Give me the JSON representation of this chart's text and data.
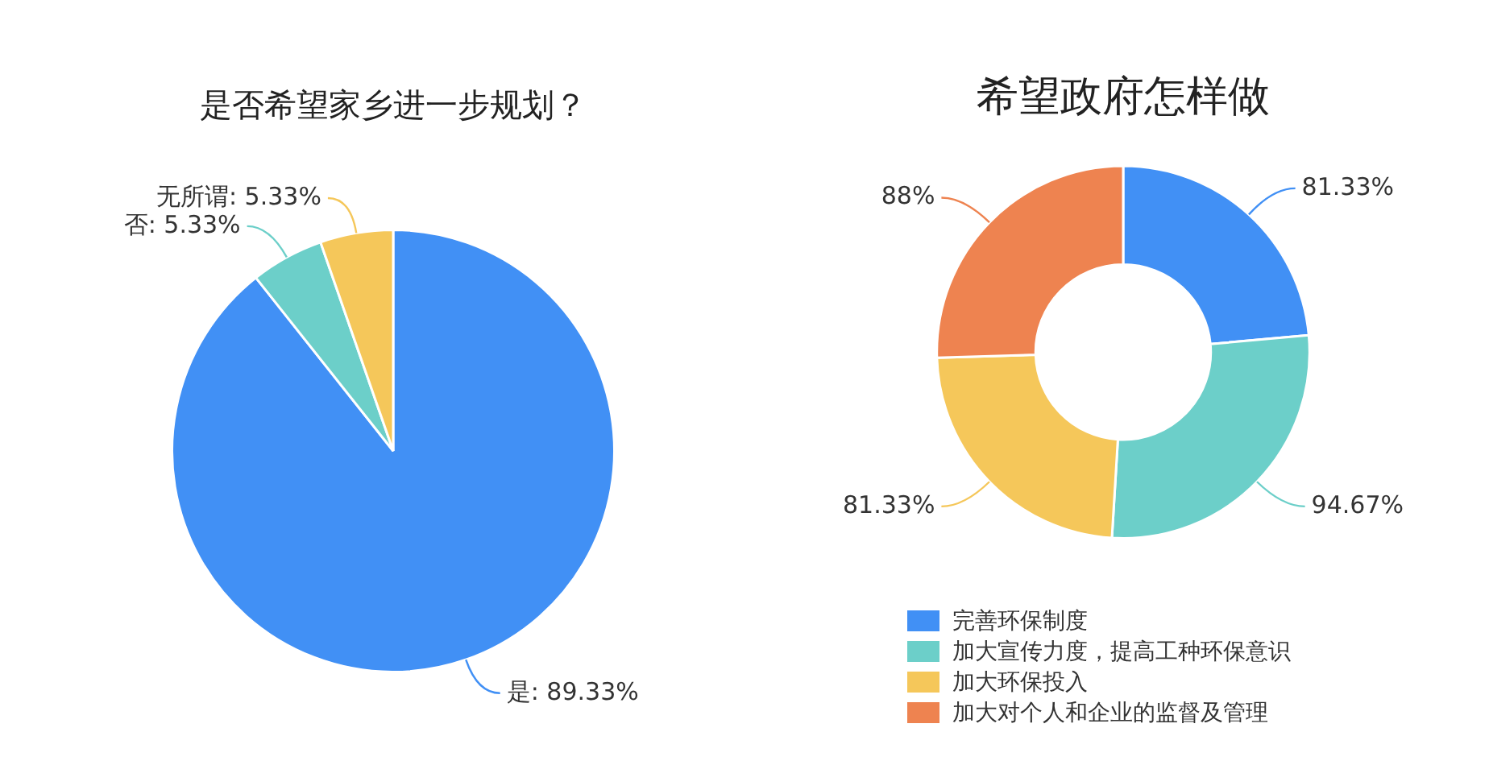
{
  "chart_data": [
    {
      "type": "pie",
      "title": "是否希望家乡进一步规划？",
      "categories": [
        "是",
        "否",
        "无所谓"
      ],
      "values": [
        89.33,
        5.33,
        5.33
      ],
      "colors": [
        "#4190f5",
        "#6ccfc9",
        "#f5c75a"
      ],
      "value_labels": [
        "89.33%",
        "5.33%",
        "5.33%"
      ]
    },
    {
      "type": "donut",
      "title": "希望政府怎样做",
      "categories": [
        "完善环保制度",
        "加大宣传力度，提高工种环保意识",
        "加大环保投入",
        "加大对个人和企业的监督及管理"
      ],
      "values": [
        81.33,
        94.67,
        81.33,
        88
      ],
      "colors": [
        "#4190f5",
        "#6ccfc9",
        "#f5c75a",
        "#ee8350"
      ],
      "value_labels": [
        "81.33%",
        "94.67%",
        "81.33%",
        "88%"
      ],
      "legend": "bottom"
    }
  ]
}
